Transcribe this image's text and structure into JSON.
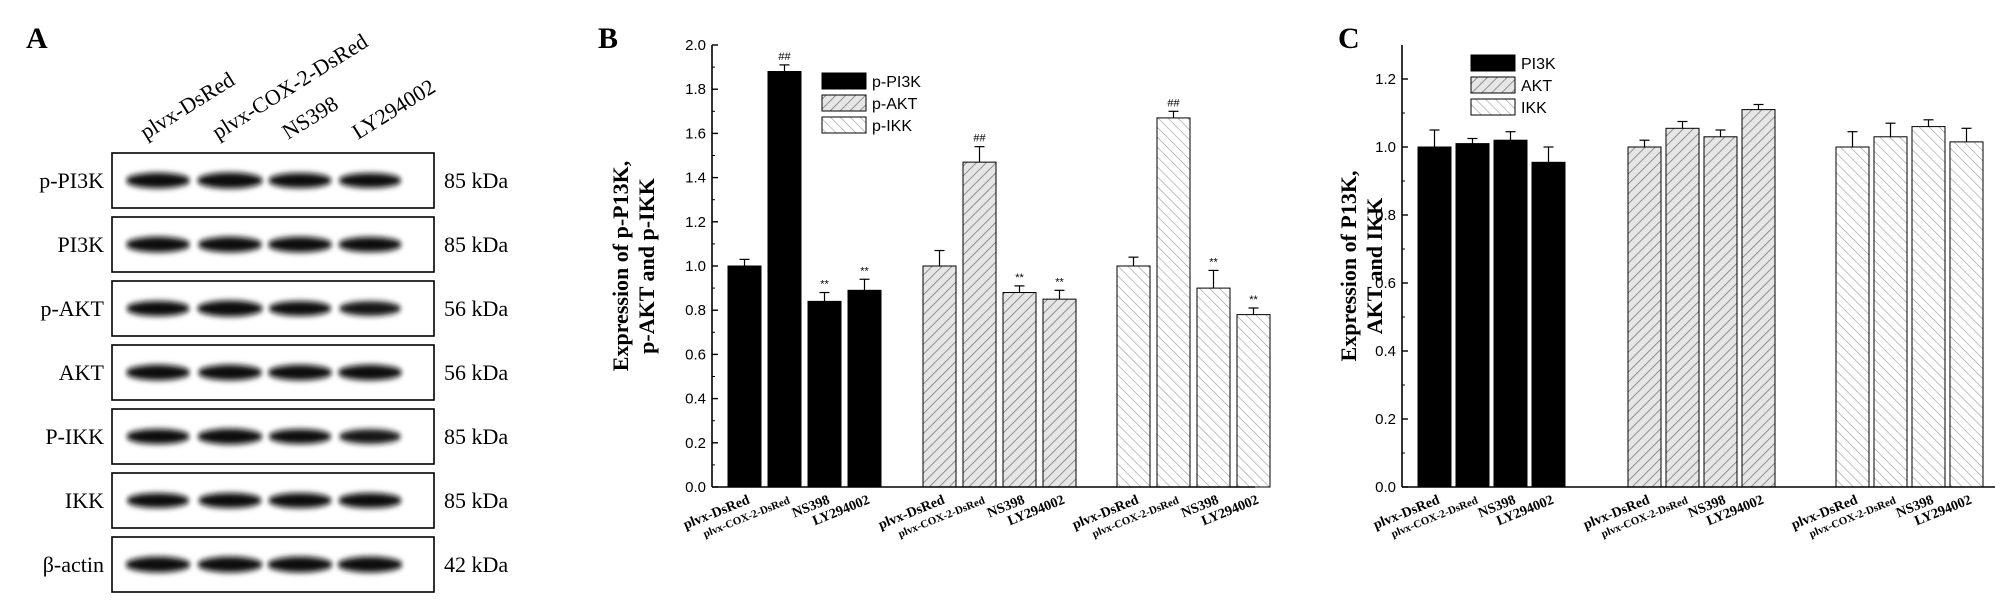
{
  "panelA": {
    "letter": "A",
    "lanes": [
      "plvx-DsRed",
      "plvx-COX-2-DsRed",
      "NS398",
      "LY294002"
    ],
    "blots": [
      {
        "protein": "p-PI3K",
        "kda": "85 kDa",
        "intensity": [
          0.9,
          1.0,
          0.85,
          0.8
        ]
      },
      {
        "protein": "PI3K",
        "kda": "85 kDa",
        "intensity": [
          0.9,
          0.9,
          0.9,
          0.85
        ]
      },
      {
        "protein": "p-AKT",
        "kda": "56 kDa",
        "intensity": [
          0.85,
          1.0,
          0.8,
          0.75
        ]
      },
      {
        "protein": "AKT",
        "kda": "56 kDa",
        "intensity": [
          0.9,
          0.9,
          0.9,
          0.9
        ]
      },
      {
        "protein": "P-IKK",
        "kda": "85 kDa",
        "intensity": [
          0.85,
          0.95,
          0.8,
          0.75
        ]
      },
      {
        "protein": "IKK",
        "kda": "85 kDa",
        "intensity": [
          0.8,
          0.85,
          0.85,
          0.85
        ]
      },
      {
        "protein": "β-actin",
        "kda": "42 kDa",
        "intensity": [
          0.95,
          0.95,
          0.95,
          0.95
        ]
      }
    ]
  },
  "chart_data": [
    {
      "panel": "B",
      "type": "bar",
      "ylabel_lines": [
        "Expression of p-P13K,",
        "p-AKT and p-IKK"
      ],
      "ylim": [
        0,
        2.0
      ],
      "yticks": [
        "0.0",
        "0.2",
        "0.4",
        "0.6",
        "0.8",
        "1.0",
        "1.2",
        "1.4",
        "1.6",
        "1.8",
        "2.0"
      ],
      "categories": [
        "plvx-DsRed",
        "plvx-COX-2-DsRed",
        "NS398",
        "LY294002"
      ],
      "legend_position": "top-center",
      "series": [
        {
          "name": "p-PI3K",
          "pattern": "solid",
          "values": [
            1.0,
            1.88,
            0.84,
            0.89
          ],
          "errors": [
            0.03,
            0.03,
            0.04,
            0.05
          ],
          "marks": [
            "",
            "##",
            "**",
            "**"
          ]
        },
        {
          "name": "p-AKT",
          "pattern": "dense",
          "values": [
            1.0,
            1.47,
            0.88,
            0.85
          ],
          "errors": [
            0.07,
            0.07,
            0.03,
            0.04
          ],
          "marks": [
            "",
            "##",
            "**",
            "**"
          ]
        },
        {
          "name": "p-IKK",
          "pattern": "sparse",
          "values": [
            1.0,
            1.67,
            0.9,
            0.78
          ],
          "errors": [
            0.04,
            0.03,
            0.08,
            0.03
          ],
          "marks": [
            "",
            "##",
            "**",
            "**"
          ]
        }
      ]
    },
    {
      "panel": "C",
      "type": "bar",
      "ylabel_lines": [
        "Expression of P13K,",
        "AKT and IKK"
      ],
      "ylim": [
        0,
        1.3
      ],
      "yticks": [
        "0.0",
        "0.2",
        "0.4",
        "0.6",
        "0.8",
        "1.0",
        "1.2"
      ],
      "categories": [
        "plvx-DsRed",
        "plvx-COX-2-DsRed",
        "NS398",
        "LY294002"
      ],
      "legend_position": "top-left",
      "series": [
        {
          "name": "PI3K",
          "pattern": "solid",
          "values": [
            1.0,
            1.01,
            1.02,
            0.955
          ],
          "errors": [
            0.05,
            0.015,
            0.025,
            0.045
          ],
          "marks": [
            "",
            "",
            "",
            ""
          ]
        },
        {
          "name": "AKT",
          "pattern": "dense",
          "values": [
            1.0,
            1.055,
            1.03,
            1.11
          ],
          "errors": [
            0.02,
            0.02,
            0.02,
            0.015
          ],
          "marks": [
            "",
            "",
            "",
            ""
          ]
        },
        {
          "name": "IKK",
          "pattern": "sparse",
          "values": [
            1.0,
            1.03,
            1.06,
            1.015
          ],
          "errors": [
            0.045,
            0.04,
            0.02,
            0.04
          ],
          "marks": [
            "",
            "",
            "",
            ""
          ]
        }
      ]
    }
  ]
}
